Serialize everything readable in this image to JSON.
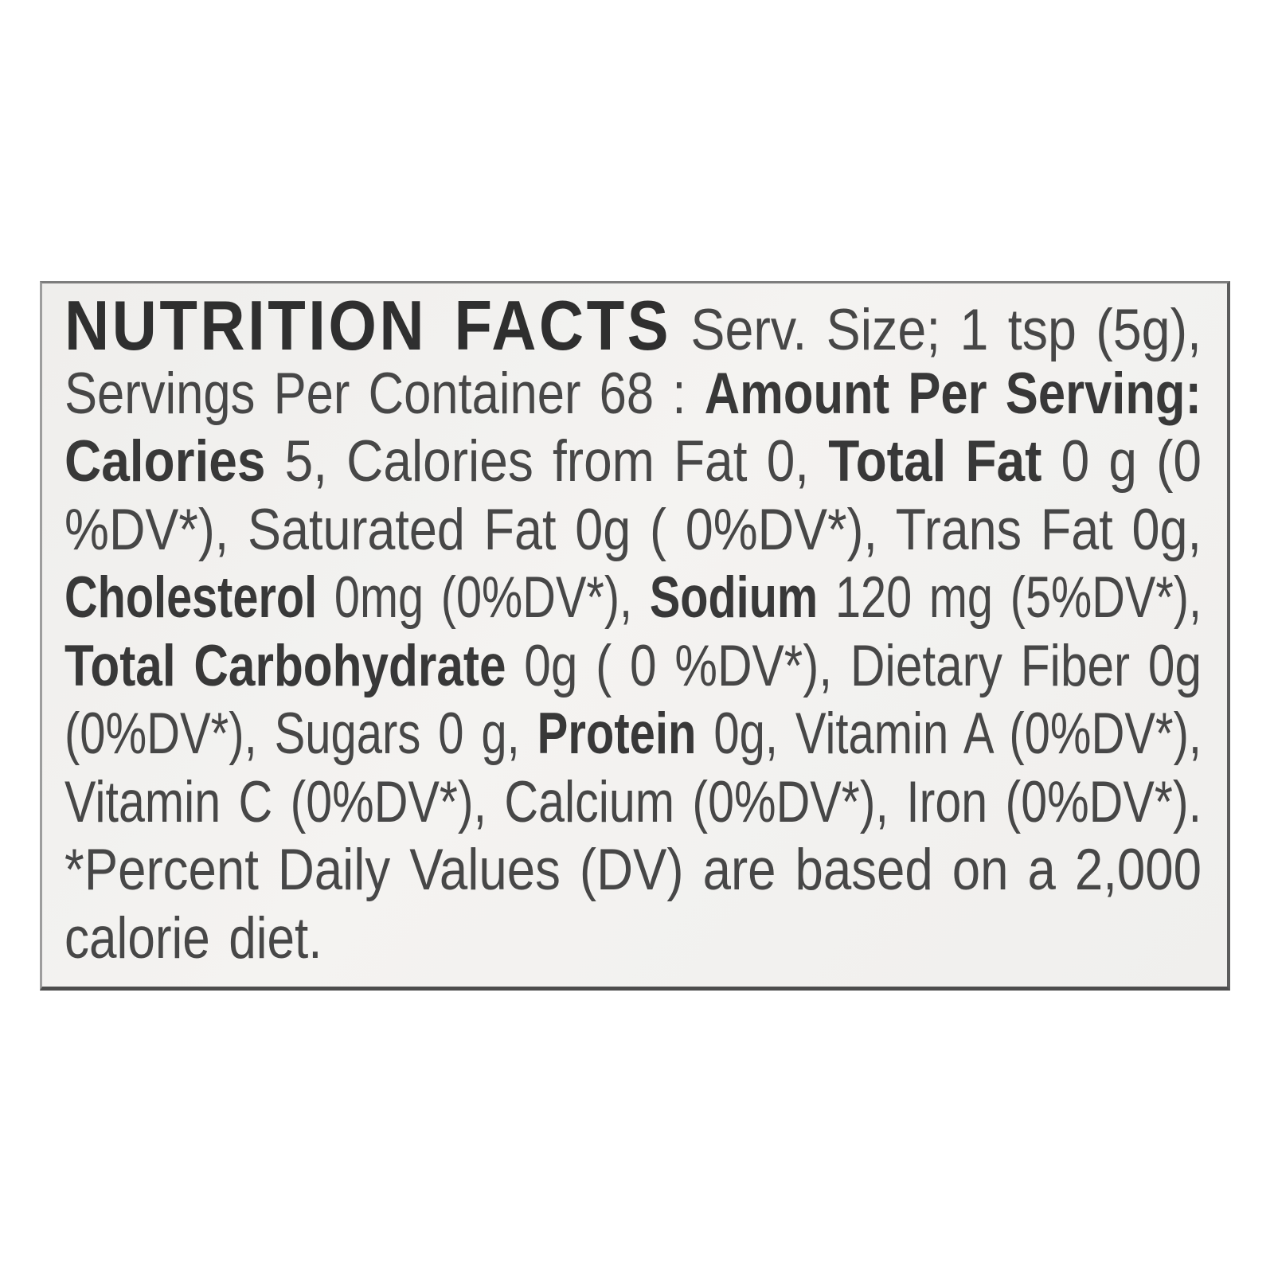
{
  "colors": {
    "page_background": "#ffffff",
    "label_background": "#f2f1ef",
    "body_text": "#474747",
    "bold_text": "#383838",
    "heading_text": "#2f2f2f",
    "border": "#7d7d7d",
    "border_dark": "#4d4d4d"
  },
  "label": {
    "title": "NUTRITION FACTS",
    "serving_size": "1 tsp (5g)",
    "servings_per_container": "68",
    "calories": "5",
    "calories_from_fat": "0",
    "total_fat": "0 g (0 %DV*)",
    "saturated_fat": "0g ( 0%DV*)",
    "trans_fat": "0g",
    "cholesterol": "0mg (0%DV*)",
    "sodium": "120 mg (5%DV*)",
    "total_carbohydrate": "0g ( 0 %DV*)",
    "dietary_fiber": "0g (0%DV*)",
    "sugars": "0 g",
    "protein": "0g",
    "vitamin_a": "(0%DV*)",
    "vitamin_c": "(0%DV*)",
    "calcium": "(0%DV*)",
    "iron": "(0%DV*)",
    "footnote": "*Percent Daily Values (DV) are based on a 2,000 calorie diet.",
    "lines": [
      {
        "fit": "justify",
        "segments": [
          {
            "style": "heading",
            "text": "NUTRITION FACTS"
          },
          {
            "style": "normal",
            "text": " Serv. Size; 1 tsp (5g),"
          }
        ]
      },
      {
        "fit": "justify",
        "segments": [
          {
            "style": "normal",
            "text": "Servings Per Container 68 : "
          },
          {
            "style": "bold",
            "text": "Amount Per Serving:"
          }
        ]
      },
      {
        "fit": "justify",
        "segments": [
          {
            "style": "bold",
            "text": "Calories"
          },
          {
            "style": "normal",
            "text": " 5, Calories from Fat 0, "
          },
          {
            "style": "bold",
            "text": "Total Fat"
          },
          {
            "style": "normal",
            "text": " 0 g (0"
          }
        ]
      },
      {
        "fit": "justify",
        "segments": [
          {
            "style": "normal",
            "text": "%DV*), Saturated Fat 0g ( 0%DV*), Trans Fat 0g,"
          }
        ]
      },
      {
        "fit": "justify",
        "segments": [
          {
            "style": "bold",
            "text": "Cholesterol"
          },
          {
            "style": "normal",
            "text": " 0mg (0%DV*), "
          },
          {
            "style": "bold",
            "text": "Sodium"
          },
          {
            "style": "normal",
            "text": " 120 mg (5%DV*),"
          }
        ]
      },
      {
        "fit": "justify",
        "segments": [
          {
            "style": "bold",
            "text": "Total Carbohydrate"
          },
          {
            "style": "normal",
            "text": " 0g ( 0 %DV*), Dietary Fiber 0g"
          }
        ]
      },
      {
        "fit": "justify",
        "segments": [
          {
            "style": "normal",
            "text": "(0%DV*), Sugars 0 g, "
          },
          {
            "style": "bold",
            "text": "Protein"
          },
          {
            "style": "normal",
            "text": " 0g, Vitamin A (0%DV*),"
          }
        ]
      },
      {
        "fit": "justify",
        "segments": [
          {
            "style": "normal",
            "text": "Vitamin C (0%DV*), Calcium (0%DV*), Iron (0%DV*)."
          }
        ]
      },
      {
        "fit": "justify",
        "segments": [
          {
            "style": "normal",
            "text": "*Percent Daily Values (DV) are based on a 2,000"
          }
        ]
      },
      {
        "fit": "fixed",
        "scale": 0.85,
        "segments": [
          {
            "style": "normal",
            "text": "calorie diet."
          }
        ]
      }
    ]
  }
}
